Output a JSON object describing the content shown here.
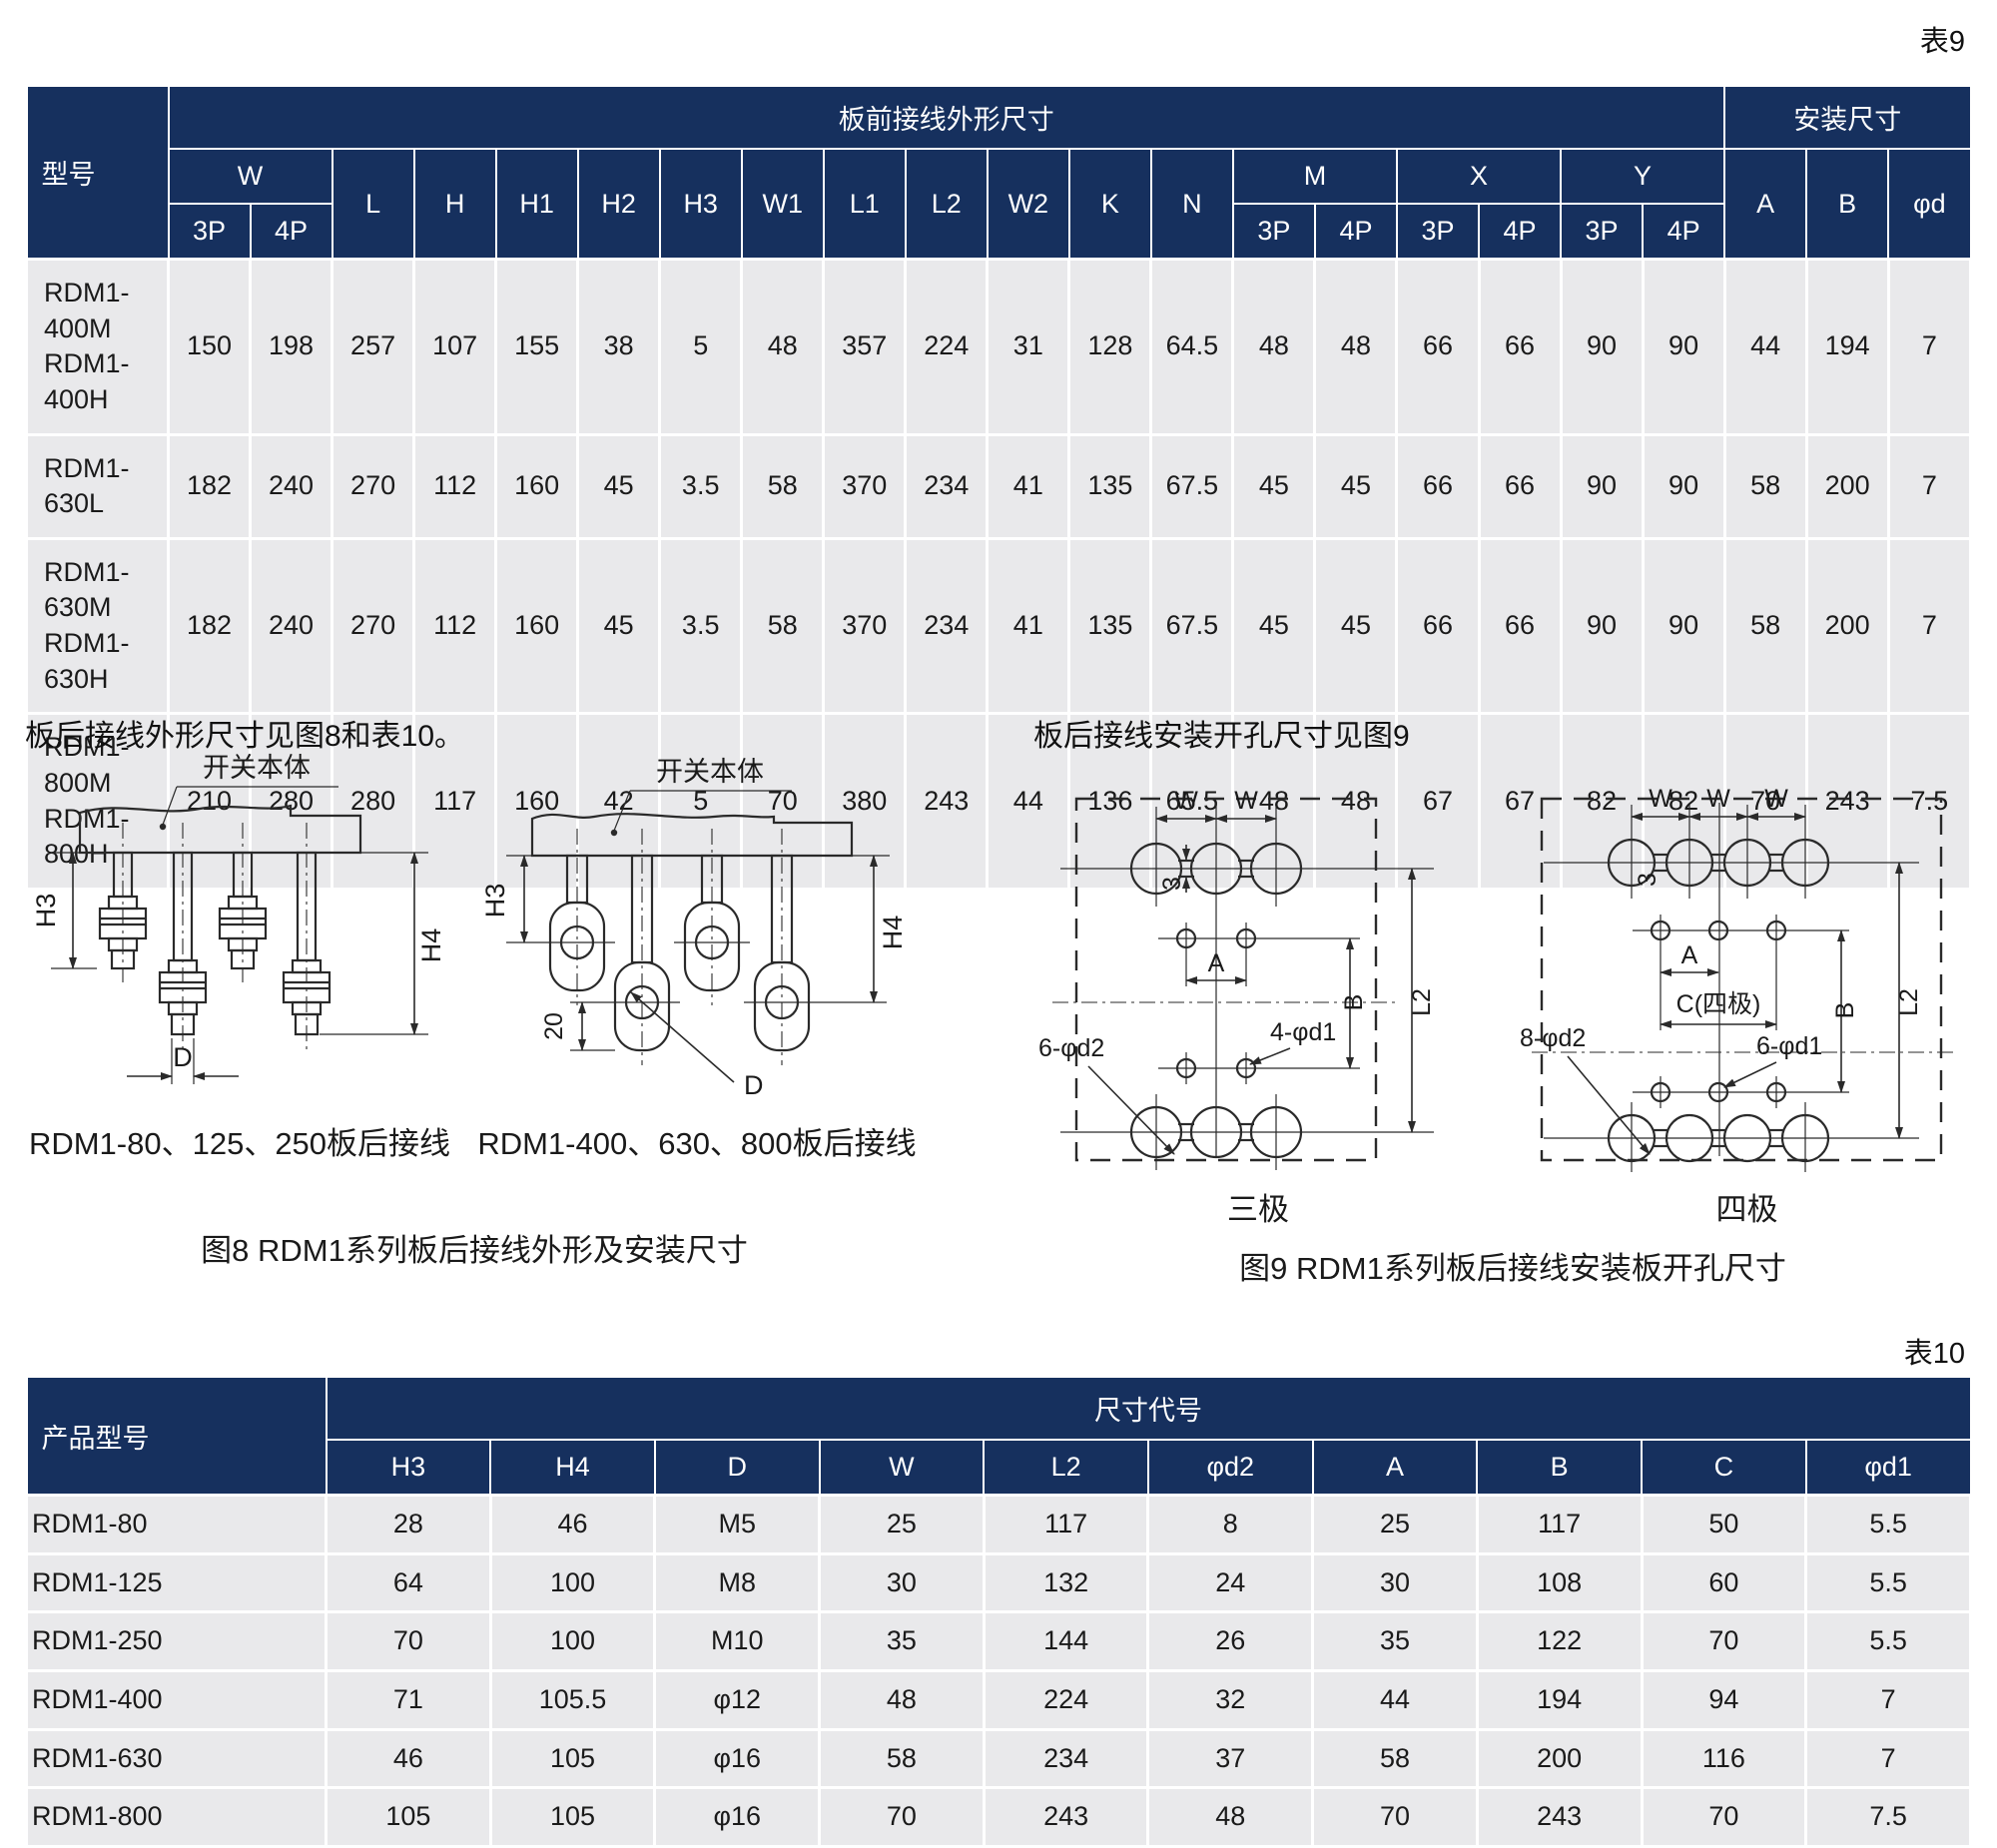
{
  "page": {
    "table9_tag": "表9",
    "table10_tag": "表10",
    "left_note": "板后接线外形尺寸见图8和表10。",
    "right_note": "板后接线安装开孔尺寸见图9"
  },
  "colors": {
    "header_bg": "#16305e",
    "row_bg": "#e9e9eb"
  },
  "table9": {
    "model_header": "型号",
    "group_front": "板前接线外形尺寸",
    "group_install": "安装尺寸",
    "headers": {
      "w": "W",
      "l": "L",
      "h": "H",
      "h1": "H1",
      "h2": "H2",
      "h3": "H3",
      "w1": "W1",
      "l1": "L1",
      "l2": "L2",
      "w2": "W2",
      "k": "K",
      "n": "N",
      "m": "M",
      "x": "X",
      "y": "Y",
      "a": "A",
      "b": "B",
      "phid": "φd",
      "p3": "3P",
      "p4": "4P"
    },
    "rows": [
      {
        "model": [
          "RDM1-400M",
          "RDM1-400H"
        ],
        "values": [
          "150",
          "198",
          "257",
          "107",
          "155",
          "38",
          "5",
          "48",
          "357",
          "224",
          "31",
          "128",
          "64.5",
          "48",
          "48",
          "66",
          "66",
          "90",
          "90",
          "44",
          "194",
          "7"
        ]
      },
      {
        "model": [
          "RDM1-630L"
        ],
        "values": [
          "182",
          "240",
          "270",
          "112",
          "160",
          "45",
          "3.5",
          "58",
          "370",
          "234",
          "41",
          "135",
          "67.5",
          "45",
          "45",
          "66",
          "66",
          "90",
          "90",
          "58",
          "200",
          "7"
        ]
      },
      {
        "model": [
          "RDM1-630M",
          "RDM1-630H"
        ],
        "values": [
          "182",
          "240",
          "270",
          "112",
          "160",
          "45",
          "3.5",
          "58",
          "370",
          "234",
          "41",
          "135",
          "67.5",
          "45",
          "45",
          "66",
          "66",
          "90",
          "90",
          "58",
          "200",
          "7"
        ]
      },
      {
        "model": [
          "RDM1-800M",
          "RDM1-800H"
        ],
        "values": [
          "210",
          "280",
          "280",
          "117",
          "160",
          "42",
          "5",
          "70",
          "380",
          "243",
          "44",
          "136",
          "65.5",
          "48",
          "48",
          "67",
          "67",
          "82",
          "82",
          "70",
          "243",
          "7.5"
        ]
      }
    ]
  },
  "table10": {
    "model_header": "产品型号",
    "group": "尺寸代号",
    "columns": [
      "H3",
      "H4",
      "D",
      "W",
      "L2",
      "φd2",
      "A",
      "B",
      "C",
      "φd1"
    ],
    "rows": [
      {
        "model": "RDM1-80",
        "values": [
          "28",
          "46",
          "M5",
          "25",
          "117",
          "8",
          "25",
          "117",
          "50",
          "5.5"
        ]
      },
      {
        "model": "RDM1-125",
        "values": [
          "64",
          "100",
          "M8",
          "30",
          "132",
          "24",
          "30",
          "108",
          "60",
          "5.5"
        ]
      },
      {
        "model": "RDM1-250",
        "values": [
          "70",
          "100",
          "M10",
          "35",
          "144",
          "26",
          "35",
          "122",
          "70",
          "5.5"
        ]
      },
      {
        "model": "RDM1-400",
        "values": [
          "71",
          "105.5",
          "φ12",
          "48",
          "224",
          "32",
          "44",
          "194",
          "94",
          "7"
        ]
      },
      {
        "model": "RDM1-630",
        "values": [
          "46",
          "105",
          "φ16",
          "58",
          "234",
          "37",
          "58",
          "200",
          "116",
          "7"
        ]
      },
      {
        "model": "RDM1-800",
        "values": [
          "105",
          "105",
          "φ16",
          "70",
          "243",
          "48",
          "70",
          "243",
          "70",
          "7.5"
        ]
      }
    ]
  },
  "fig8": {
    "body_label": "开关本体",
    "h3": "H3",
    "h4": "H4",
    "d": "D",
    "dim20": "20",
    "caption_left": "RDM1-80、125、250板后接线",
    "caption_right": "RDM1-400、630、800板后接线",
    "title": "图8 RDM1系列板后接线外形及安装尺寸"
  },
  "fig9": {
    "w": "W",
    "a": "A",
    "b": "B",
    "l2": "L2",
    "c4": "C(四极)",
    "neck": "3",
    "lbl_6d2": "6-φd2",
    "lbl_4d1": "4-φd1",
    "lbl_8d2": "8-φd2",
    "lbl_6d1": "6-φd1",
    "pole3": "三极",
    "pole4": "四极",
    "title": "图9 RDM1系列板后接线安装板开孔尺寸"
  }
}
